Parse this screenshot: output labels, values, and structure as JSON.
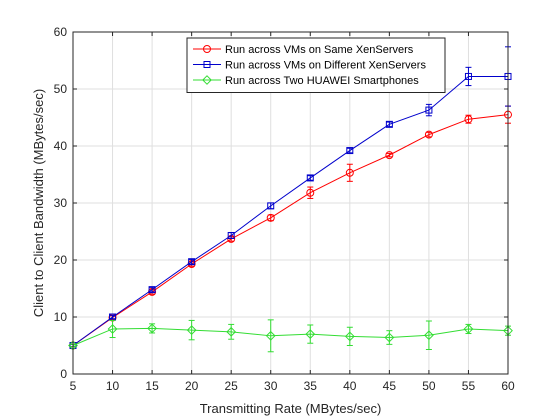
{
  "chart_data": {
    "type": "line",
    "xlabel": "Transmitting Rate (MBytes/sec)",
    "ylabel": "Client to Client Bandwidth (MBytes/sec)",
    "xlim": [
      5,
      60
    ],
    "ylim": [
      0,
      60
    ],
    "xticks": [
      5,
      10,
      15,
      20,
      25,
      30,
      35,
      40,
      45,
      50,
      55,
      60
    ],
    "yticks": [
      0,
      10,
      20,
      30,
      40,
      50,
      60
    ],
    "grid": true,
    "legend_position": "top-right",
    "x": [
      5,
      10,
      15,
      20,
      25,
      30,
      35,
      40,
      45,
      50,
      55,
      60
    ],
    "series": [
      {
        "name": "Run across VMs on Same XenServers",
        "color": "#ff0000",
        "marker": "circle",
        "values": [
          5.0,
          9.9,
          14.4,
          19.3,
          23.7,
          27.4,
          31.8,
          35.3,
          38.4,
          42.0,
          44.7,
          45.5
        ],
        "errors": [
          0.2,
          0.3,
          0.4,
          0.4,
          0.4,
          0.5,
          1.0,
          1.5,
          0.3,
          0.4,
          0.7,
          1.5
        ]
      },
      {
        "name": "Run across VMs on Different XenServers",
        "color": "#0000cc",
        "marker": "square",
        "values": [
          5.0,
          10.0,
          14.8,
          19.7,
          24.3,
          29.5,
          34.4,
          39.2,
          43.8,
          46.3,
          52.2,
          52.2
        ],
        "errors": [
          0.2,
          0.3,
          0.4,
          0.4,
          0.5,
          0.5,
          0.4,
          0.4,
          0.4,
          1.0,
          1.6,
          5.2
        ]
      },
      {
        "name": "Run across Two HUAWEI Smartphones",
        "color": "#33dd33",
        "marker": "diamond",
        "values": [
          5.0,
          7.9,
          8.0,
          7.7,
          7.4,
          6.7,
          7.0,
          6.6,
          6.4,
          6.8,
          7.9,
          7.6
        ],
        "errors": [
          0.2,
          1.5,
          0.8,
          1.7,
          1.3,
          2.8,
          1.6,
          1.6,
          1.2,
          2.5,
          0.8,
          0.8
        ]
      }
    ]
  }
}
